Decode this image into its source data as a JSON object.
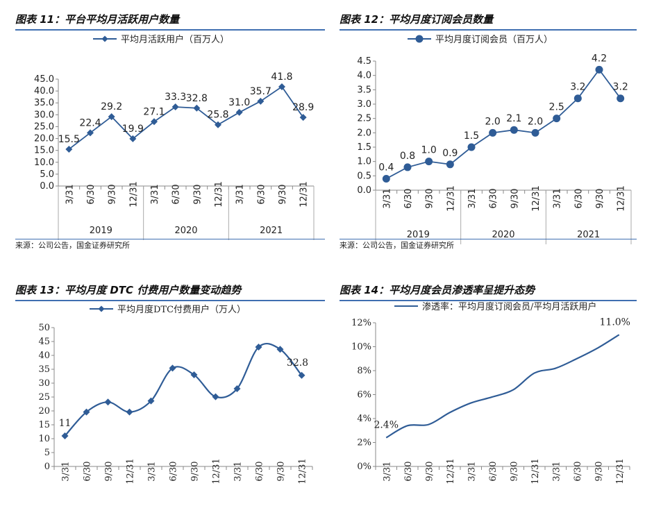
{
  "charts": [
    {
      "title": "图表 11：平台平均月活跃用户数量",
      "source": "来源：公司公告，国金证券研究所",
      "chart_data": {
        "type": "line",
        "legend": "平均月活跃用户（百万人）",
        "categories": [
          "3/31",
          "6/30",
          "9/30",
          "12/31",
          "3/31",
          "6/30",
          "9/30",
          "12/31",
          "3/31",
          "6/30",
          "9/30",
          "12/31"
        ],
        "groups": [
          {
            "label": "2019",
            "span": 4
          },
          {
            "label": "2020",
            "span": 4
          },
          {
            "label": "2021",
            "span": 4
          }
        ],
        "values": [
          15.5,
          22.4,
          29.2,
          19.9,
          27.1,
          33.3,
          32.8,
          25.8,
          31.0,
          35.7,
          41.8,
          28.9
        ],
        "data_labels": [
          "15.5",
          "22.4",
          "29.2",
          "19.9",
          "27.1",
          "33.3",
          "32.8",
          "25.8",
          "31.0",
          "35.7",
          "41.8",
          "28.9"
        ],
        "ylim": [
          0,
          45
        ],
        "yticks": [
          "0.0",
          "5.0",
          "10.0",
          "15.0",
          "20.0",
          "25.0",
          "30.0",
          "35.0",
          "40.0",
          "45.0"
        ],
        "marker": "diamond",
        "line_color": "#2f5c96"
      }
    },
    {
      "title": "图表 12：平均月度订阅会员数量",
      "source": "来源：公司公告，国金证券研究所",
      "chart_data": {
        "type": "line",
        "legend": "平均月度订阅会员（百万人）",
        "categories": [
          "3/31",
          "6/30",
          "9/30",
          "12/31",
          "3/31",
          "6/30",
          "9/30",
          "12/31",
          "3/31",
          "6/30",
          "9/30",
          "12/31"
        ],
        "groups": [
          {
            "label": "2019",
            "span": 4
          },
          {
            "label": "2020",
            "span": 4
          },
          {
            "label": "2021",
            "span": 4
          }
        ],
        "values": [
          0.4,
          0.8,
          1.0,
          0.9,
          1.5,
          2.0,
          2.1,
          2.0,
          2.5,
          3.2,
          4.2,
          3.2
        ],
        "data_labels": [
          "0.4",
          "0.8",
          "1.0",
          "0.9",
          "1.5",
          "2.0",
          "2.1",
          "2.0",
          "2.5",
          "3.2",
          "4.2",
          "3.2"
        ],
        "ylim": [
          0,
          4.5
        ],
        "yticks": [
          "0.0",
          "0.5",
          "1.0",
          "1.5",
          "2.0",
          "2.5",
          "3.0",
          "3.5",
          "4.0",
          "4.5"
        ],
        "marker": "circle",
        "line_color": "#2f5c96"
      }
    },
    {
      "title": "图表 13：平均月度 DTC 付费用户数量变动趋势",
      "chart_data": {
        "type": "line",
        "smooth": true,
        "legend": "平均月度DTC付费用户（万人）",
        "categories": [
          "3/31",
          "6/30",
          "9/30",
          "12/31",
          "3/31",
          "6/30",
          "9/30",
          "12/31",
          "3/31",
          "6/30",
          "9/30",
          "12/31"
        ],
        "values": [
          11,
          19.6,
          23.2,
          19.6,
          23.6,
          35.4,
          33.0,
          25.1,
          28.0,
          43.0,
          42.2,
          32.8
        ],
        "data_labels": {
          "0": "11",
          "11": "32.8"
        },
        "ylim": [
          0,
          50
        ],
        "yticks": [
          "0",
          "5",
          "10",
          "15",
          "20",
          "25",
          "30",
          "35",
          "40",
          "45",
          "50"
        ],
        "marker": "diamond",
        "line_color": "#2f5c96"
      }
    },
    {
      "title": "图表 14：平均月度会员渗透率呈提升态势",
      "chart_data": {
        "type": "line",
        "smooth": true,
        "legend": "渗透率：平均月度订阅会员/平均月活跃用户",
        "categories": [
          "3/31",
          "6/30",
          "9/30",
          "12/31",
          "3/31",
          "6/30",
          "9/30",
          "12/31",
          "3/31",
          "6/30",
          "9/30",
          "12/31"
        ],
        "values": [
          2.4,
          3.4,
          3.5,
          4.5,
          5.3,
          5.8,
          6.4,
          7.8,
          8.2,
          9.0,
          9.9,
          11.0
        ],
        "data_labels": {
          "0": "2.4%",
          "11": "11.0%"
        },
        "ylim": [
          0,
          12
        ],
        "yticks": [
          "0%",
          "2%",
          "4%",
          "6%",
          "8%",
          "10%",
          "12%"
        ],
        "marker": "none",
        "line_color": "#2f5c96"
      }
    }
  ]
}
